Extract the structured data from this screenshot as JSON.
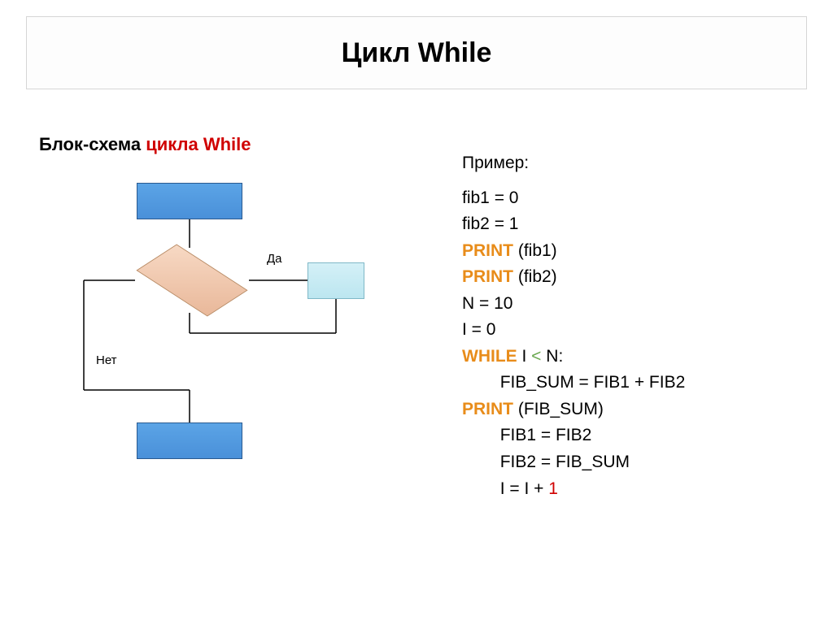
{
  "title": "Цикл While",
  "subtitle_prefix": "Блок-схема ",
  "subtitle_highlight": "цикла While",
  "example_label": "Пример:",
  "diagram": {
    "label_yes": "Да",
    "label_no": "Нет",
    "colors": {
      "process_fill_top": "#5ba4e6",
      "process_fill_bottom": "#4a90d9",
      "process_border": "#2a5a90",
      "decision_fill_top": "#f7d9c4",
      "decision_fill_bottom": "#e9b89a",
      "decision_border": "#b88860",
      "body_fill_top": "#d4f0f7",
      "body_fill_bottom": "#bce6f0",
      "body_border": "#7fb8c7",
      "connector": "#000000"
    }
  },
  "code": {
    "lines": [
      {
        "indent": 0,
        "segments": [
          {
            "t": "fib1 = 0",
            "c": "plain"
          }
        ]
      },
      {
        "indent": 0,
        "segments": [
          {
            "t": "fib2 = 1",
            "c": "plain"
          }
        ]
      },
      {
        "indent": 0,
        "segments": [
          {
            "t": "PRINT",
            "c": "orange"
          },
          {
            "t": " (fib1)",
            "c": "plain"
          }
        ]
      },
      {
        "indent": 0,
        "segments": [
          {
            "t": "PRINT",
            "c": "orange"
          },
          {
            "t": " (fib2)",
            "c": "plain"
          }
        ]
      },
      {
        "indent": 0,
        "segments": [
          {
            "t": "N = 10",
            "c": "plain"
          }
        ]
      },
      {
        "indent": 0,
        "segments": [
          {
            "t": "I = 0",
            "c": "plain"
          }
        ]
      },
      {
        "indent": 0,
        "segments": [
          {
            "t": "WHILE",
            "c": "orange"
          },
          {
            "t": " I ",
            "c": "plain"
          },
          {
            "t": "<",
            "c": "green"
          },
          {
            "t": " N:",
            "c": "plain"
          }
        ]
      },
      {
        "indent": 1,
        "segments": [
          {
            "t": "FIB_SUM = FIB1 + FIB2",
            "c": "plain"
          }
        ]
      },
      {
        "indent": 0,
        "segments": [
          {
            "t": "PRINT",
            "c": "orange"
          },
          {
            "t": " (FIB_SUM)",
            "c": "plain"
          }
        ]
      },
      {
        "indent": 1,
        "segments": [
          {
            "t": "FIB1 = FIB2",
            "c": "plain"
          }
        ]
      },
      {
        "indent": 1,
        "segments": [
          {
            "t": "FIB2 = FIB_SUM",
            "c": "plain"
          }
        ]
      },
      {
        "indent": 1,
        "segments": [
          {
            "t": "I = I + ",
            "c": "plain"
          },
          {
            "t": "1",
            "c": "red2"
          }
        ]
      }
    ]
  },
  "style": {
    "title_fontsize": 34,
    "subtitle_fontsize": 22,
    "code_fontsize": 21,
    "label_fontsize": 15,
    "subtitle_red": "#d00000",
    "orange": "#e88c1a",
    "green": "#6aa84f",
    "red_code": "#d00000",
    "title_border": "#d6d6d6",
    "background": "#ffffff"
  }
}
